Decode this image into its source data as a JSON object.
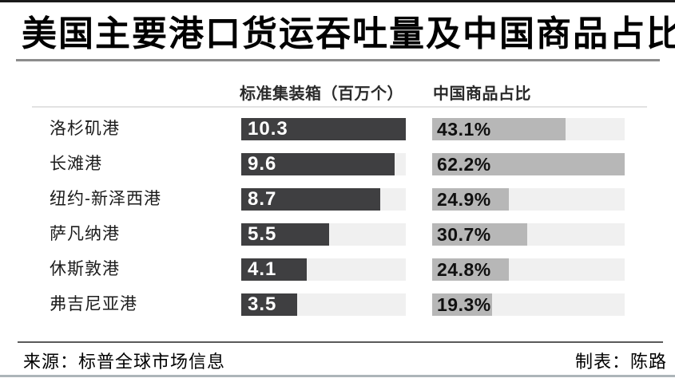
{
  "title": "美国主要港口货运吞吐量及中国商品占比",
  "columns": {
    "teu_header": "标准集装箱（百万个）",
    "share_header": "中国商品占比"
  },
  "footer": {
    "source": "来源：标普全球市场信息",
    "credit": "制表：陈路"
  },
  "colors": {
    "teu_bar": "#3f3f41",
    "share_bar": "#b7b7b7",
    "track": "#f0f0f0",
    "top_rule": "#1a1a1a",
    "bottom_rule": "#adb5b9"
  },
  "chart_data": {
    "type": "bar",
    "title": "美国主要港口货运吞吐量及中国商品占比",
    "orientation": "horizontal",
    "grid": false,
    "legend_position": "column-headers",
    "categories": [
      "洛杉矶港",
      "长滩港",
      "纽约-新泽西港",
      "萨凡纳港",
      "休斯敦港",
      "弗吉尼亚港"
    ],
    "series": [
      {
        "name": "标准集装箱（百万个）",
        "values": [
          10.3,
          9.6,
          8.7,
          5.5,
          4.1,
          3.5
        ],
        "axis_max": 10.3,
        "unit": ""
      },
      {
        "name": "中国商品占比",
        "values": [
          43.1,
          62.2,
          24.9,
          30.7,
          24.8,
          19.3
        ],
        "axis_max": 62.2,
        "unit": "%"
      }
    ],
    "value_labels": {
      "teu": [
        "10.3",
        "9.6",
        "8.7",
        "5.5",
        "4.1",
        "3.5"
      ],
      "share": [
        "43.1%",
        "62.2%",
        "24.9%",
        "30.7%",
        "24.8%",
        "19.3%"
      ]
    }
  }
}
